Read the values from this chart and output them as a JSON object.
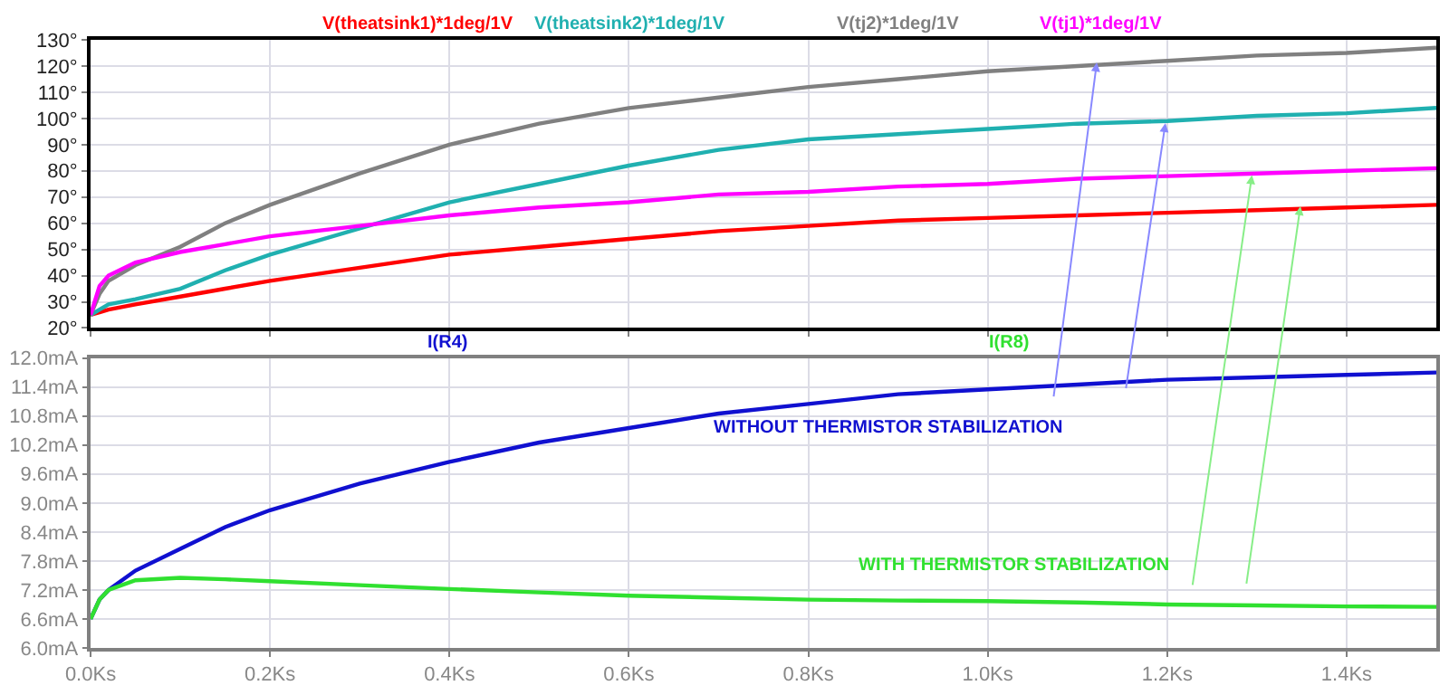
{
  "chart_data": [
    {
      "type": "line",
      "grid": true,
      "tick_labels": "y",
      "xlim": [
        0,
        1.5
      ],
      "ylim": [
        20,
        130
      ],
      "yticks": [
        {
          "value": 20,
          "label": "20°"
        },
        {
          "value": 30,
          "label": "30°"
        },
        {
          "value": 40,
          "label": "40°"
        },
        {
          "value": 50,
          "label": "50°"
        },
        {
          "value": 60,
          "label": "60°"
        },
        {
          "value": 70,
          "label": "70°"
        },
        {
          "value": 80,
          "label": "80°"
        },
        {
          "value": 90,
          "label": "90°"
        },
        {
          "value": 100,
          "label": "100°"
        },
        {
          "value": 110,
          "label": "110°"
        },
        {
          "value": 120,
          "label": "120°"
        },
        {
          "value": 130,
          "label": "130°"
        }
      ],
      "x": [
        0,
        0.01,
        0.02,
        0.05,
        0.1,
        0.15,
        0.2,
        0.3,
        0.4,
        0.5,
        0.6,
        0.7,
        0.8,
        0.9,
        1.0,
        1.1,
        1.2,
        1.3,
        1.4,
        1.5
      ],
      "series": [
        {
          "name": "V(theatsink1)*1deg/1V",
          "color": "#ff0000",
          "values": [
            25,
            26,
            27,
            29,
            32,
            35,
            38,
            43,
            48,
            51,
            54,
            57,
            59,
            61,
            62,
            63,
            64,
            65,
            66,
            67
          ]
        },
        {
          "name": "V(theatsink2)*1deg/1V",
          "color": "#20b0b0",
          "values": [
            25,
            27,
            29,
            31,
            35,
            42,
            48,
            58,
            68,
            75,
            82,
            88,
            92,
            94,
            96,
            98,
            99,
            101,
            102,
            104
          ]
        },
        {
          "name": "V(tj2)*1deg/1V",
          "color": "#808080",
          "values": [
            25,
            33,
            38,
            44,
            51,
            60,
            67,
            79,
            90,
            98,
            104,
            108,
            112,
            115,
            118,
            120,
            122,
            124,
            125,
            127
          ]
        },
        {
          "name": "V(tj1)*1deg/1V",
          "color": "#ff00ff",
          "values": [
            25,
            36,
            40,
            45,
            49,
            52,
            55,
            59,
            63,
            66,
            68,
            71,
            72,
            74,
            75,
            77,
            78,
            79,
            80,
            81
          ]
        }
      ]
    },
    {
      "type": "line",
      "grid": true,
      "xlim": [
        0,
        1.5
      ],
      "xticks": [
        {
          "value": 0,
          "label": "0.0Ks"
        },
        {
          "value": 0.2,
          "label": "0.2Ks"
        },
        {
          "value": 0.4,
          "label": "0.4Ks"
        },
        {
          "value": 0.6,
          "label": "0.6Ks"
        },
        {
          "value": 0.8,
          "label": "0.8Ks"
        },
        {
          "value": 1.0,
          "label": "1.0Ks"
        },
        {
          "value": 1.2,
          "label": "1.2Ks"
        },
        {
          "value": 1.4,
          "label": "1.4Ks"
        }
      ],
      "ylim": [
        6.0,
        12.0
      ],
      "yticks": [
        {
          "value": 6.0,
          "label": "6.0mA"
        },
        {
          "value": 6.6,
          "label": "6.6mA"
        },
        {
          "value": 7.2,
          "label": "7.2mA"
        },
        {
          "value": 7.8,
          "label": "7.8mA"
        },
        {
          "value": 8.4,
          "label": "8.4mA"
        },
        {
          "value": 9.0,
          "label": "9.0mA"
        },
        {
          "value": 9.6,
          "label": "9.6mA"
        },
        {
          "value": 10.2,
          "label": "10.2mA"
        },
        {
          "value": 10.8,
          "label": "10.8mA"
        },
        {
          "value": 11.4,
          "label": "11.4mA"
        },
        {
          "value": 12.0,
          "label": "12.0mA"
        }
      ],
      "x": [
        0,
        0.01,
        0.02,
        0.05,
        0.1,
        0.15,
        0.2,
        0.3,
        0.4,
        0.5,
        0.6,
        0.7,
        0.8,
        0.9,
        1.0,
        1.1,
        1.2,
        1.3,
        1.4,
        1.5
      ],
      "series": [
        {
          "name": "I(R4)",
          "color": "#1010d0",
          "values": [
            6.6,
            7.0,
            7.2,
            7.6,
            8.05,
            8.5,
            8.85,
            9.4,
            9.85,
            10.25,
            10.55,
            10.85,
            11.05,
            11.25,
            11.35,
            11.45,
            11.55,
            11.6,
            11.65,
            11.7
          ]
        },
        {
          "name": "I(R8)",
          "color": "#30e030",
          "values": [
            6.6,
            7.0,
            7.2,
            7.4,
            7.45,
            7.42,
            7.38,
            7.3,
            7.22,
            7.15,
            7.08,
            7.04,
            7.0,
            6.98,
            6.97,
            6.94,
            6.9,
            6.88,
            6.86,
            6.85
          ]
        }
      ],
      "annotations": [
        "WITHOUT THERMISTOR STABILIZATION",
        "WITH THERMISTOR STABILIZATION"
      ]
    }
  ]
}
